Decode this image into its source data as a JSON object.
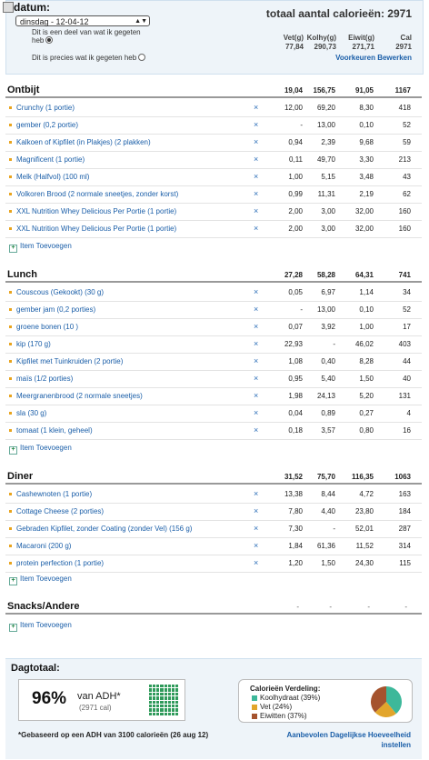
{
  "header": {
    "date_label": "datum:",
    "date_value": "dinsdag - 12-04-12",
    "radio_option1_line1": "Dit is een deel van wat ik gegeten",
    "radio_option1_line2": "heb",
    "radio_option2": "Dit is precies wat ik gegeten heb",
    "total_title": "totaal aantal calorieën: 2971",
    "columns": [
      "Vet(g)",
      "Kolhy(g)",
      "Eiwit(g)",
      "Cal"
    ],
    "totals": [
      "77,84",
      "290,73",
      "271,71",
      "2971"
    ],
    "preferences_link": "Voorkeuren Bewerken"
  },
  "meals": [
    {
      "title": "Ontbijt",
      "totals": [
        "19,04",
        "156,75",
        "91,05",
        "1167"
      ],
      "items": [
        {
          "name": "Crunchy (1 portie)",
          "vals": [
            "12,00",
            "69,20",
            "8,30",
            "418"
          ]
        },
        {
          "name": "gember (0,2 portie)",
          "vals": [
            "-",
            "13,00",
            "0,10",
            "52"
          ]
        },
        {
          "name": "Kalkoen of Kipfilet (in Plakjes) (2 plakken)",
          "vals": [
            "0,94",
            "2,39",
            "9,68",
            "59"
          ]
        },
        {
          "name": "Magnificent (1 portie)",
          "vals": [
            "0,11",
            "49,70",
            "3,30",
            "213"
          ]
        },
        {
          "name": "Melk (Halfvol) (100 ml)",
          "vals": [
            "1,00",
            "5,15",
            "3,48",
            "43"
          ]
        },
        {
          "name": "Volkoren Brood (2 normale sneetjes, zonder korst)",
          "vals": [
            "0,99",
            "11,31",
            "2,19",
            "62"
          ]
        },
        {
          "name": "XXL Nutrition Whey Delicious Per Portie (1 portie)",
          "vals": [
            "2,00",
            "3,00",
            "32,00",
            "160"
          ]
        },
        {
          "name": "XXL Nutrition Whey Delicious Per Portie (1 portie)",
          "vals": [
            "2,00",
            "3,00",
            "32,00",
            "160"
          ]
        }
      ]
    },
    {
      "title": "Lunch",
      "totals": [
        "27,28",
        "58,28",
        "64,31",
        "741"
      ],
      "items": [
        {
          "name": "Couscous (Gekookt) (30 g)",
          "vals": [
            "0,05",
            "6,97",
            "1,14",
            "34"
          ]
        },
        {
          "name": "gember jam (0,2 porties)",
          "vals": [
            "-",
            "13,00",
            "0,10",
            "52"
          ]
        },
        {
          "name": "groene bonen (10 )",
          "vals": [
            "0,07",
            "3,92",
            "1,00",
            "17"
          ]
        },
        {
          "name": "kip (170 g)",
          "vals": [
            "22,93",
            "-",
            "46,02",
            "403"
          ]
        },
        {
          "name": "Kipfilet met Tuinkruiden (2 portie)",
          "vals": [
            "1,08",
            "0,40",
            "8,28",
            "44"
          ]
        },
        {
          "name": "maïs (1/2 porties)",
          "vals": [
            "0,95",
            "5,40",
            "1,50",
            "40"
          ]
        },
        {
          "name": "Meergranenbrood (2 normale sneetjes)",
          "vals": [
            "1,98",
            "24,13",
            "5,20",
            "131"
          ]
        },
        {
          "name": "sla (30 g)",
          "vals": [
            "0,04",
            "0,89",
            "0,27",
            "4"
          ]
        },
        {
          "name": "tomaat (1 klein, geheel)",
          "vals": [
            "0,18",
            "3,57",
            "0,80",
            "16"
          ]
        }
      ]
    },
    {
      "title": "Diner",
      "totals": [
        "31,52",
        "75,70",
        "116,35",
        "1063"
      ],
      "items": [
        {
          "name": "Cashewnoten (1 portie)",
          "vals": [
            "13,38",
            "8,44",
            "4,72",
            "163"
          ]
        },
        {
          "name": "Cottage Cheese (2 porties)",
          "vals": [
            "7,80",
            "4,40",
            "23,80",
            "184"
          ]
        },
        {
          "name": "Gebraden Kipfilet, zonder Coating (zonder Vel) (156 g)",
          "vals": [
            "7,30",
            "-",
            "52,01",
            "287"
          ]
        },
        {
          "name": "Macaroni (200 g)",
          "vals": [
            "1,84",
            "61,36",
            "11,52",
            "314"
          ]
        },
        {
          "name": "protein perfection (1 portie)",
          "vals": [
            "1,20",
            "1,50",
            "24,30",
            "115"
          ]
        }
      ]
    }
  ],
  "snacks": {
    "title": "Snacks/Andere",
    "totals": [
      "-",
      "-",
      "-",
      "-"
    ]
  },
  "add_item_label": "Item Toevoegen",
  "remove_symbol": "×",
  "day_total": {
    "title": "Dagtotaal:",
    "percent": "96%",
    "adh_label": "van ADH*",
    "cal_note": "(2971 cal)",
    "distribution_title": "Calorieën Verdeling:",
    "legend": [
      {
        "label": "Koolhydraat (39%)",
        "color": "#3db89a",
        "value": 39
      },
      {
        "label": "Vet (24%)",
        "color": "#e2a52b",
        "value": 24
      },
      {
        "label": "Eiwitten (37%)",
        "color": "#a5532e",
        "value": 37
      }
    ],
    "footnote": "*Gebaseerd op een ADH van 3100 calorieën (26 aug 12)",
    "recommend_link": "Aanbevolen Dagelijkse Hoeveelheid instellen"
  }
}
